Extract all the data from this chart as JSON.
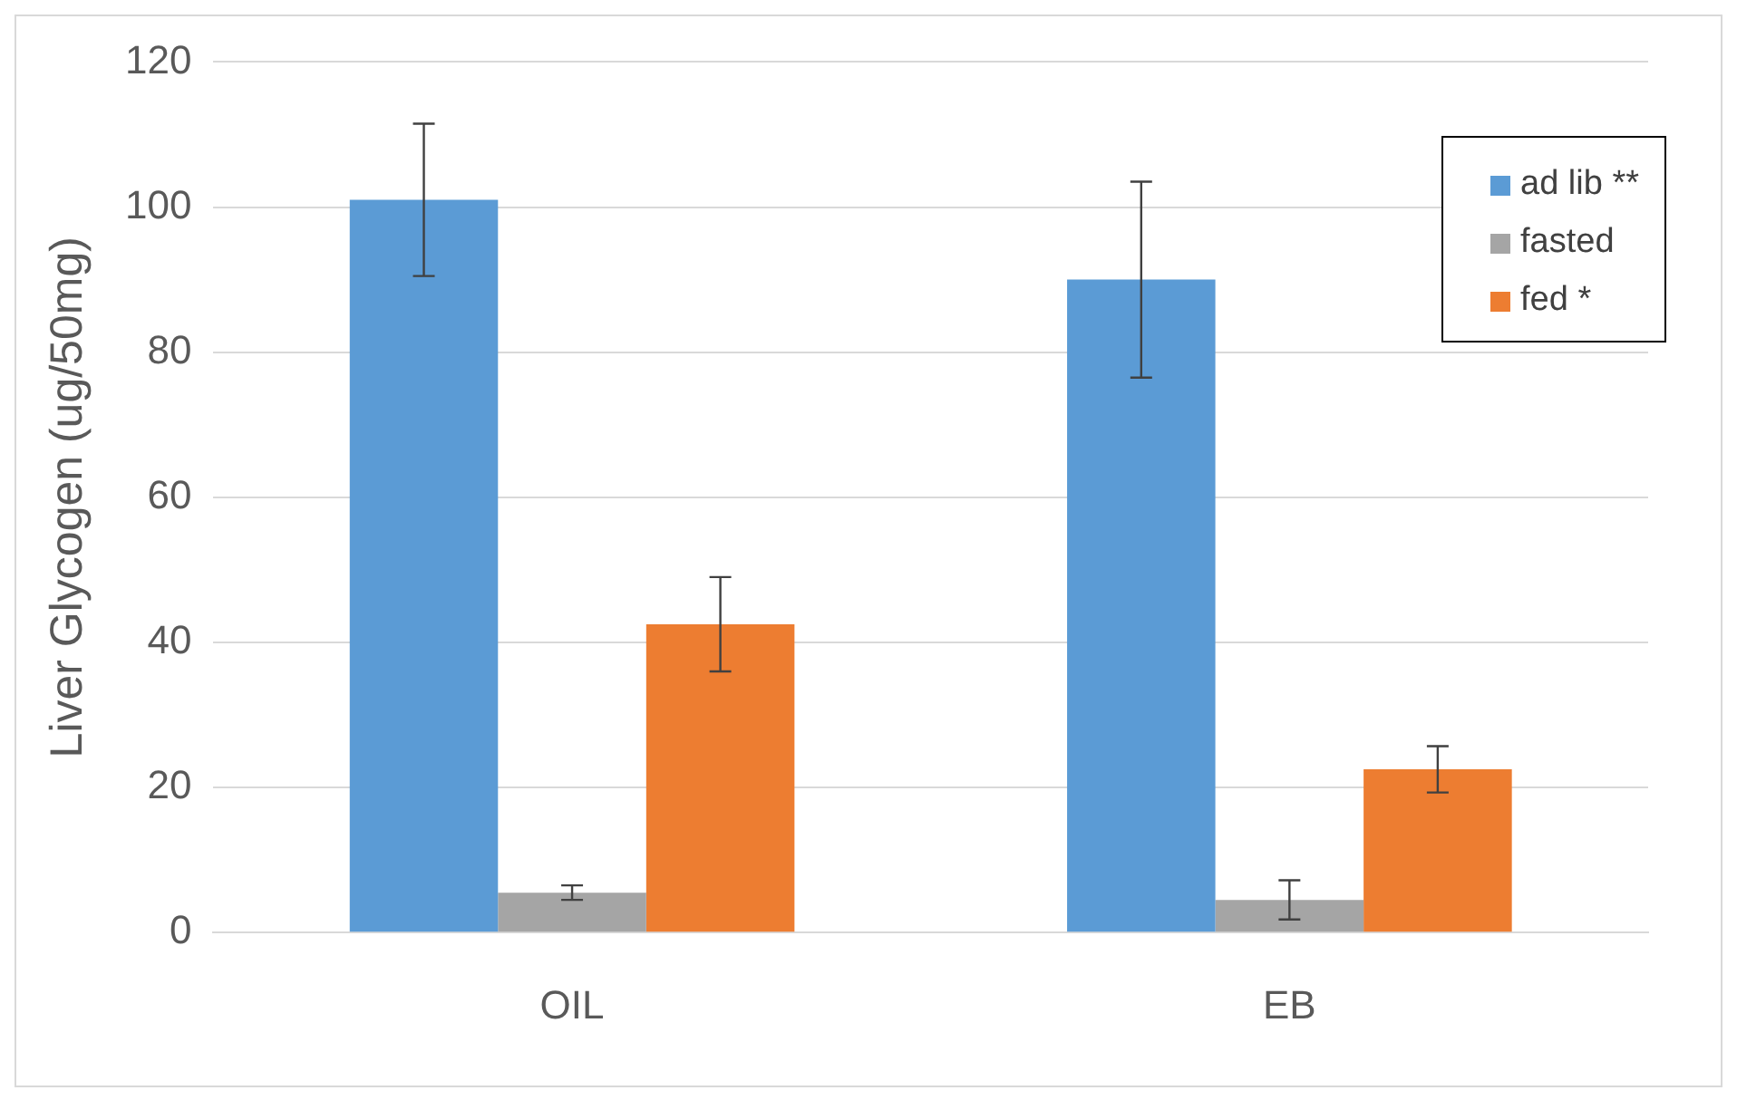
{
  "chart_data": {
    "type": "bar",
    "ylabel": "Liver Glycogen (ug/50mg)",
    "categories": [
      "OIL",
      "EB"
    ],
    "series": [
      {
        "name": "ad lib **",
        "color": "#5b9bd5",
        "values": [
          101,
          90
        ],
        "errors": [
          10.5,
          13.5
        ]
      },
      {
        "name": "fasted",
        "color": "#a5a5a5",
        "values": [
          5.5,
          4.5
        ],
        "errors": [
          1,
          2.7
        ]
      },
      {
        "name": "fed *",
        "color": "#ed7d31",
        "values": [
          42.5,
          22.5
        ],
        "errors": [
          6.5,
          3.2
        ]
      }
    ],
    "ylim": [
      0,
      120
    ],
    "yticks": [
      0,
      20,
      40,
      60,
      80,
      100,
      120
    ],
    "grid": "y",
    "legend": "top right"
  }
}
